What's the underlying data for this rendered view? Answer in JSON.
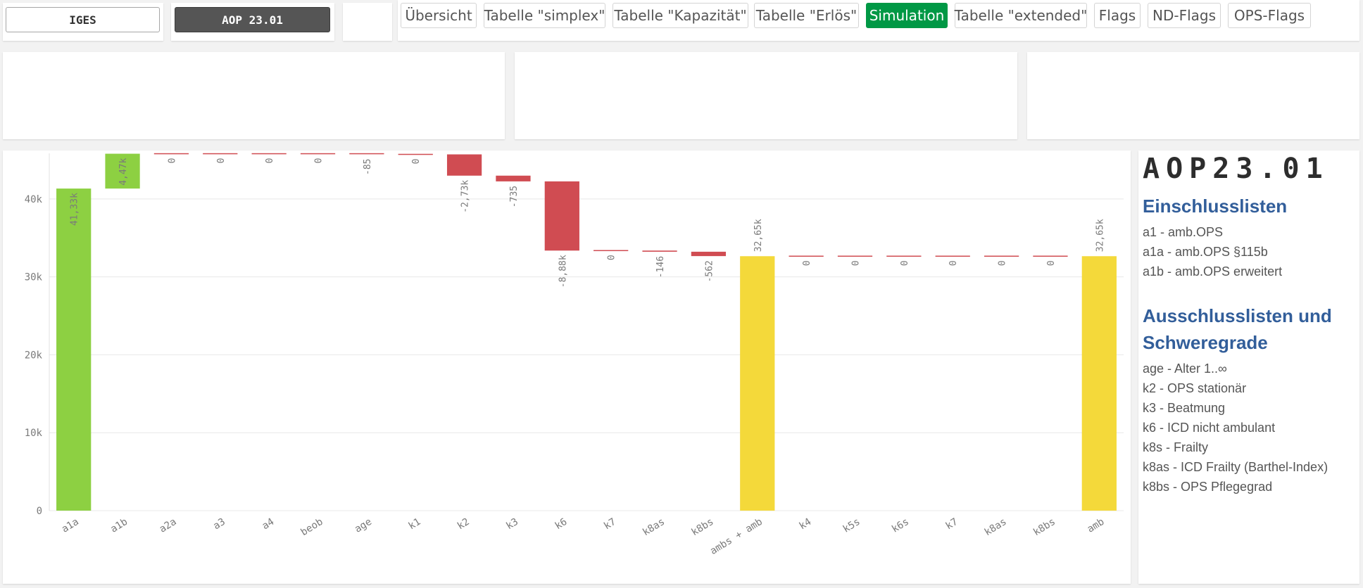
{
  "selectors": {
    "iges": "IGES",
    "aop": "AOP 23.01"
  },
  "nav_tabs": [
    {
      "label": "Übersicht",
      "active": false
    },
    {
      "label": "Tabelle \"simplex\"",
      "active": false
    },
    {
      "label": "Tabelle \"Kapazität\"",
      "active": false
    },
    {
      "label": "Tabelle \"Erlös\"",
      "active": false
    },
    {
      "label": "Simulation",
      "active": true
    },
    {
      "label": "Tabelle \"extended\"",
      "active": false
    },
    {
      "label": "Flags",
      "active": false
    },
    {
      "label": "ND-Flags",
      "active": false
    },
    {
      "label": "OPS-Flags",
      "active": false
    }
  ],
  "colors": {
    "positive": "#8dd042",
    "negative": "#d04c52",
    "total": "#f4d93a",
    "active_tab": "#009845",
    "heading_blue": "#325e9a"
  },
  "chart_data": {
    "type": "waterfall",
    "title": "",
    "xlabel": "",
    "ylabel": "",
    "ylim": [
      0,
      45850
    ],
    "y_ticks": [
      0,
      10000,
      20000,
      30000,
      40000
    ],
    "y_tick_labels": [
      "0",
      "10k",
      "20k",
      "30k",
      "40k"
    ],
    "grid": true,
    "bars": [
      {
        "category": "a1a",
        "value": 41330,
        "kind": "positive",
        "label": "41,33k"
      },
      {
        "category": "a1b",
        "value": 4470,
        "kind": "positive",
        "label": "4,47k"
      },
      {
        "category": "a2a",
        "value": 0,
        "kind": "negative",
        "label": "0"
      },
      {
        "category": "a3",
        "value": 0,
        "kind": "negative",
        "label": "0"
      },
      {
        "category": "a4",
        "value": 0,
        "kind": "negative",
        "label": "0"
      },
      {
        "category": "beob",
        "value": 0,
        "kind": "negative",
        "label": "0"
      },
      {
        "category": "age",
        "value": -85,
        "kind": "negative",
        "label": "-85"
      },
      {
        "category": "k1",
        "value": 0,
        "kind": "negative",
        "label": "0"
      },
      {
        "category": "k2",
        "value": -2730,
        "kind": "negative",
        "label": "-2,73k"
      },
      {
        "category": "k3",
        "value": -735,
        "kind": "negative",
        "label": "-735"
      },
      {
        "category": "k6",
        "value": -8880,
        "kind": "negative",
        "label": "-8,88k"
      },
      {
        "category": "k7",
        "value": 0,
        "kind": "negative",
        "label": "0"
      },
      {
        "category": "k8as",
        "value": -146,
        "kind": "negative",
        "label": "-146"
      },
      {
        "category": "k8bs",
        "value": -562,
        "kind": "negative",
        "label": "-562"
      },
      {
        "category": "ambs + amb",
        "value": 32650,
        "kind": "total",
        "label": "32,65k"
      },
      {
        "category": "k4",
        "value": 0,
        "kind": "negative",
        "label": "0"
      },
      {
        "category": "k5s",
        "value": 0,
        "kind": "negative",
        "label": "0"
      },
      {
        "category": "k6s",
        "value": 0,
        "kind": "negative",
        "label": "0"
      },
      {
        "category": "k7",
        "value": 0,
        "kind": "negative",
        "label": "0"
      },
      {
        "category": "k8as",
        "value": 0,
        "kind": "negative",
        "label": "0"
      },
      {
        "category": "k8bs",
        "value": 0,
        "kind": "negative",
        "label": "0"
      },
      {
        "category": "amb",
        "value": 32650,
        "kind": "total",
        "label": "32,65k"
      }
    ]
  },
  "legend": {
    "title": "AOP23.01",
    "include_heading": "Einschlusslisten",
    "include_items": [
      "a1 - amb.OPS",
      "a1a - amb.OPS §115b",
      "a1b - amb.OPS erweitert"
    ],
    "exclude_heading": "Ausschlusslisten und Schweregrade",
    "exclude_items": [
      "age - Alter 1..∞",
      "k2 - OPS stationär",
      "k3 - Beatmung",
      "k6 - ICD nicht ambulant",
      "k8s - Frailty",
      "k8as - ICD Frailty (Barthel-Index)",
      "k8bs - OPS Pflegegrad"
    ]
  }
}
